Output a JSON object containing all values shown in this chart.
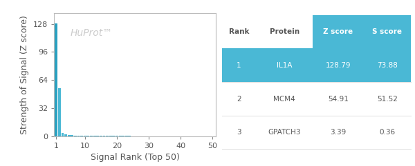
{
  "bar_values": [
    128.79,
    54.91,
    3.39,
    1.8,
    1.2,
    0.9,
    0.7,
    0.5,
    0.4,
    0.35,
    0.3,
    0.28,
    0.25,
    0.22,
    0.2,
    0.18,
    0.17,
    0.16,
    0.15,
    0.14,
    0.13,
    0.12,
    0.11,
    0.1,
    0.09,
    0.09,
    0.08,
    0.08,
    0.07,
    0.07,
    0.07,
    0.06,
    0.06,
    0.06,
    0.05,
    0.05,
    0.05,
    0.05,
    0.04,
    0.04,
    0.04,
    0.04,
    0.03,
    0.03,
    0.03,
    0.03,
    0.02,
    0.02,
    0.02,
    0.02
  ],
  "bar_color": "#4ab8d5",
  "bar_color_highlight": "#29a0c0",
  "background_color": "#ffffff",
  "xlabel": "Signal Rank (Top 50)",
  "ylabel": "Strength of Signal (Z score)",
  "watermark": "HuProt™",
  "watermark_color": "#cccccc",
  "ylim": [
    0,
    140
  ],
  "yticks": [
    0,
    32,
    64,
    96,
    128
  ],
  "xticks": [
    1,
    10,
    20,
    30,
    40,
    50
  ],
  "table_ranks": [
    "1",
    "2",
    "3"
  ],
  "table_proteins": [
    "IL1A",
    "MCM4",
    "GPATCH3"
  ],
  "table_z_scores": [
    "128.79",
    "54.91",
    "3.39"
  ],
  "table_s_scores": [
    "73.88",
    "51.52",
    "0.36"
  ],
  "table_header_bg": "#4ab8d5",
  "table_row1_bg": "#4ab8d5",
  "table_header_text_color": "#ffffff",
  "table_row1_text_color": "#ffffff",
  "table_text_color": "#555555",
  "col_headers": [
    "Rank",
    "Protein",
    "Z score",
    "S score"
  ],
  "axes_color": "#bbbbbb",
  "tick_color": "#888888",
  "label_color": "#555555",
  "tick_fontsize": 8,
  "label_fontsize": 9,
  "table_sep_color": "#dddddd"
}
